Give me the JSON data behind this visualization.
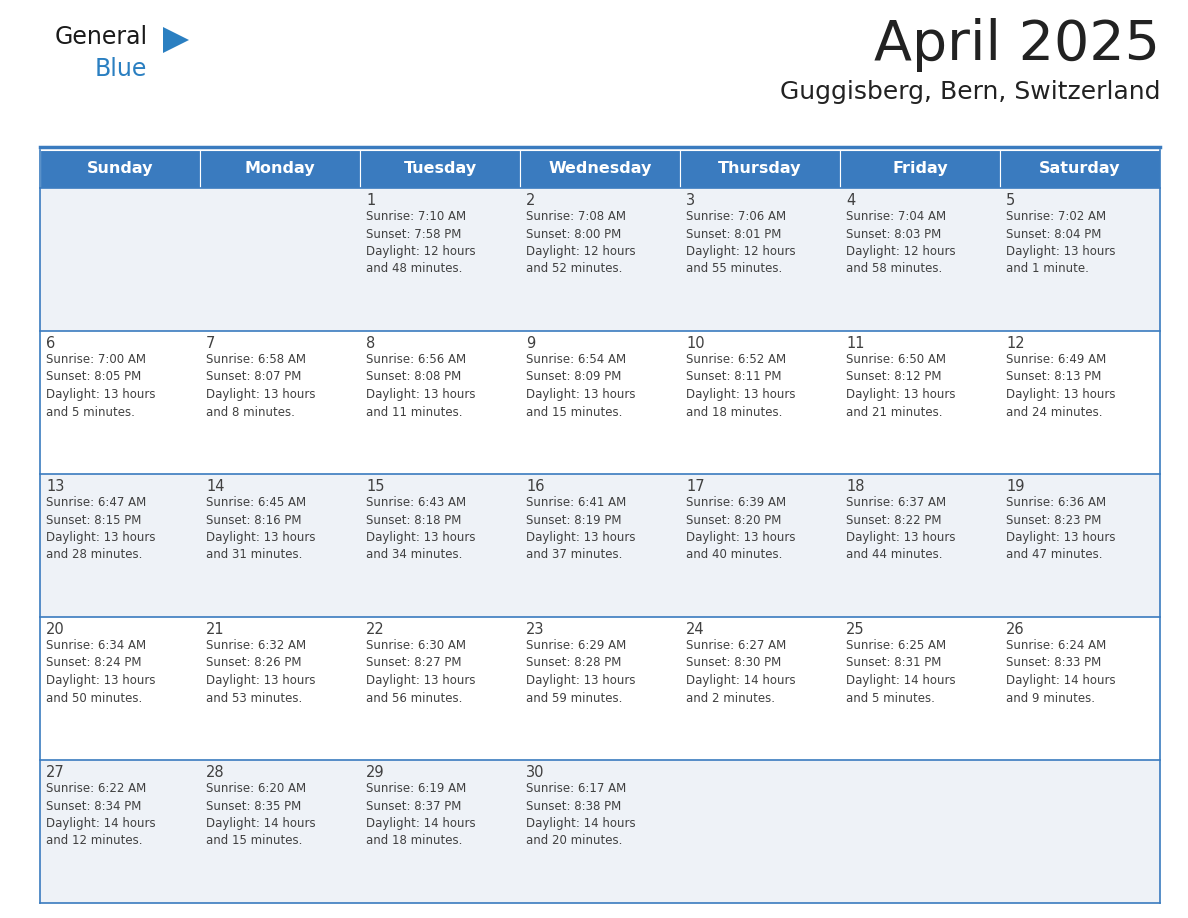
{
  "title": "April 2025",
  "subtitle": "Guggisberg, Bern, Switzerland",
  "header_bg": "#3a7bbf",
  "header_text_color": "#ffffff",
  "days_of_week": [
    "Sunday",
    "Monday",
    "Tuesday",
    "Wednesday",
    "Thursday",
    "Friday",
    "Saturday"
  ],
  "row_bg_even": "#eef2f7",
  "row_bg_odd": "#ffffff",
  "cell_border_color": "#3a7bbf",
  "text_color": "#404040",
  "title_color": "#222222",
  "calendar": [
    [
      {
        "day": "",
        "lines": []
      },
      {
        "day": "",
        "lines": []
      },
      {
        "day": "1",
        "lines": [
          "Sunrise: 7:10 AM",
          "Sunset: 7:58 PM",
          "Daylight: 12 hours",
          "and 48 minutes."
        ]
      },
      {
        "day": "2",
        "lines": [
          "Sunrise: 7:08 AM",
          "Sunset: 8:00 PM",
          "Daylight: 12 hours",
          "and 52 minutes."
        ]
      },
      {
        "day": "3",
        "lines": [
          "Sunrise: 7:06 AM",
          "Sunset: 8:01 PM",
          "Daylight: 12 hours",
          "and 55 minutes."
        ]
      },
      {
        "day": "4",
        "lines": [
          "Sunrise: 7:04 AM",
          "Sunset: 8:03 PM",
          "Daylight: 12 hours",
          "and 58 minutes."
        ]
      },
      {
        "day": "5",
        "lines": [
          "Sunrise: 7:02 AM",
          "Sunset: 8:04 PM",
          "Daylight: 13 hours",
          "and 1 minute."
        ]
      }
    ],
    [
      {
        "day": "6",
        "lines": [
          "Sunrise: 7:00 AM",
          "Sunset: 8:05 PM",
          "Daylight: 13 hours",
          "and 5 minutes."
        ]
      },
      {
        "day": "7",
        "lines": [
          "Sunrise: 6:58 AM",
          "Sunset: 8:07 PM",
          "Daylight: 13 hours",
          "and 8 minutes."
        ]
      },
      {
        "day": "8",
        "lines": [
          "Sunrise: 6:56 AM",
          "Sunset: 8:08 PM",
          "Daylight: 13 hours",
          "and 11 minutes."
        ]
      },
      {
        "day": "9",
        "lines": [
          "Sunrise: 6:54 AM",
          "Sunset: 8:09 PM",
          "Daylight: 13 hours",
          "and 15 minutes."
        ]
      },
      {
        "day": "10",
        "lines": [
          "Sunrise: 6:52 AM",
          "Sunset: 8:11 PM",
          "Daylight: 13 hours",
          "and 18 minutes."
        ]
      },
      {
        "day": "11",
        "lines": [
          "Sunrise: 6:50 AM",
          "Sunset: 8:12 PM",
          "Daylight: 13 hours",
          "and 21 minutes."
        ]
      },
      {
        "day": "12",
        "lines": [
          "Sunrise: 6:49 AM",
          "Sunset: 8:13 PM",
          "Daylight: 13 hours",
          "and 24 minutes."
        ]
      }
    ],
    [
      {
        "day": "13",
        "lines": [
          "Sunrise: 6:47 AM",
          "Sunset: 8:15 PM",
          "Daylight: 13 hours",
          "and 28 minutes."
        ]
      },
      {
        "day": "14",
        "lines": [
          "Sunrise: 6:45 AM",
          "Sunset: 8:16 PM",
          "Daylight: 13 hours",
          "and 31 minutes."
        ]
      },
      {
        "day": "15",
        "lines": [
          "Sunrise: 6:43 AM",
          "Sunset: 8:18 PM",
          "Daylight: 13 hours",
          "and 34 minutes."
        ]
      },
      {
        "day": "16",
        "lines": [
          "Sunrise: 6:41 AM",
          "Sunset: 8:19 PM",
          "Daylight: 13 hours",
          "and 37 minutes."
        ]
      },
      {
        "day": "17",
        "lines": [
          "Sunrise: 6:39 AM",
          "Sunset: 8:20 PM",
          "Daylight: 13 hours",
          "and 40 minutes."
        ]
      },
      {
        "day": "18",
        "lines": [
          "Sunrise: 6:37 AM",
          "Sunset: 8:22 PM",
          "Daylight: 13 hours",
          "and 44 minutes."
        ]
      },
      {
        "day": "19",
        "lines": [
          "Sunrise: 6:36 AM",
          "Sunset: 8:23 PM",
          "Daylight: 13 hours",
          "and 47 minutes."
        ]
      }
    ],
    [
      {
        "day": "20",
        "lines": [
          "Sunrise: 6:34 AM",
          "Sunset: 8:24 PM",
          "Daylight: 13 hours",
          "and 50 minutes."
        ]
      },
      {
        "day": "21",
        "lines": [
          "Sunrise: 6:32 AM",
          "Sunset: 8:26 PM",
          "Daylight: 13 hours",
          "and 53 minutes."
        ]
      },
      {
        "day": "22",
        "lines": [
          "Sunrise: 6:30 AM",
          "Sunset: 8:27 PM",
          "Daylight: 13 hours",
          "and 56 minutes."
        ]
      },
      {
        "day": "23",
        "lines": [
          "Sunrise: 6:29 AM",
          "Sunset: 8:28 PM",
          "Daylight: 13 hours",
          "and 59 minutes."
        ]
      },
      {
        "day": "24",
        "lines": [
          "Sunrise: 6:27 AM",
          "Sunset: 8:30 PM",
          "Daylight: 14 hours",
          "and 2 minutes."
        ]
      },
      {
        "day": "25",
        "lines": [
          "Sunrise: 6:25 AM",
          "Sunset: 8:31 PM",
          "Daylight: 14 hours",
          "and 5 minutes."
        ]
      },
      {
        "day": "26",
        "lines": [
          "Sunrise: 6:24 AM",
          "Sunset: 8:33 PM",
          "Daylight: 14 hours",
          "and 9 minutes."
        ]
      }
    ],
    [
      {
        "day": "27",
        "lines": [
          "Sunrise: 6:22 AM",
          "Sunset: 8:34 PM",
          "Daylight: 14 hours",
          "and 12 minutes."
        ]
      },
      {
        "day": "28",
        "lines": [
          "Sunrise: 6:20 AM",
          "Sunset: 8:35 PM",
          "Daylight: 14 hours",
          "and 15 minutes."
        ]
      },
      {
        "day": "29",
        "lines": [
          "Sunrise: 6:19 AM",
          "Sunset: 8:37 PM",
          "Daylight: 14 hours",
          "and 18 minutes."
        ]
      },
      {
        "day": "30",
        "lines": [
          "Sunrise: 6:17 AM",
          "Sunset: 8:38 PM",
          "Daylight: 14 hours",
          "and 20 minutes."
        ]
      },
      {
        "day": "",
        "lines": []
      },
      {
        "day": "",
        "lines": []
      },
      {
        "day": "",
        "lines": []
      }
    ]
  ],
  "logo_general_color": "#1a1a1a",
  "logo_blue_color": "#2a7fc1",
  "logo_triangle_color": "#2a7fc1"
}
